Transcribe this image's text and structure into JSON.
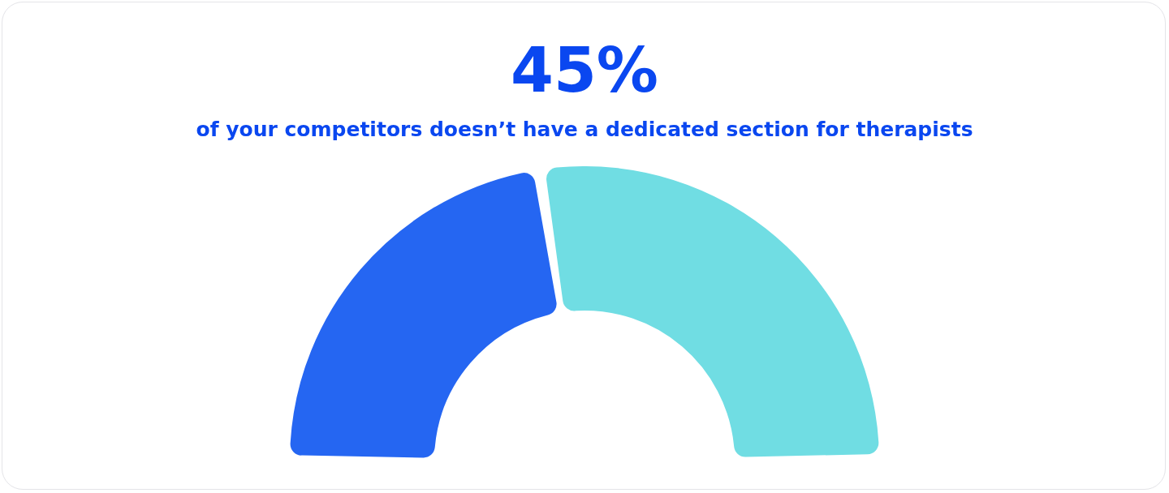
{
  "chart_data": {
    "type": "donut",
    "title": "45%",
    "subtitle": "of your competitors doesn’t have a dedicated section for therapists",
    "categories": [
      null,
      null
    ],
    "values": [
      45,
      55
    ],
    "colors": [
      "#2566f2",
      "#70dde3"
    ]
  }
}
